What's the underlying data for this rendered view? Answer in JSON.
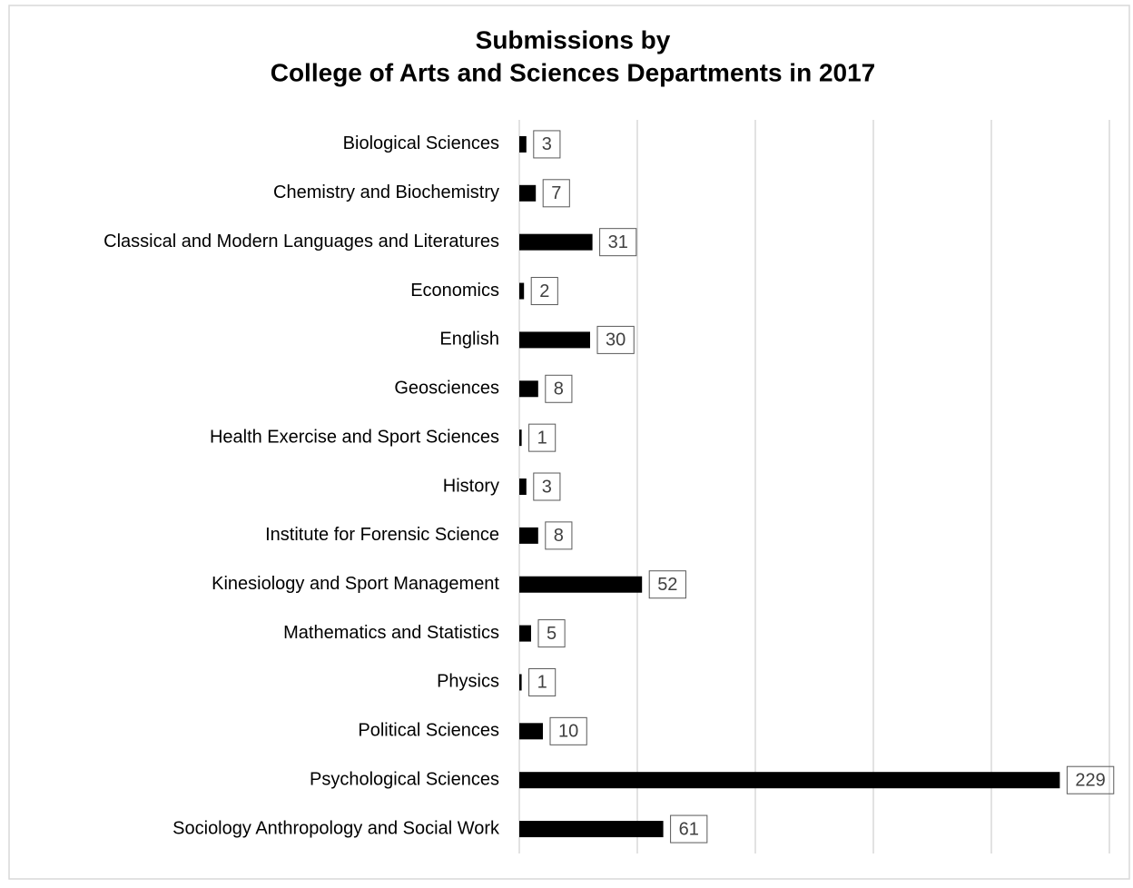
{
  "chart_data": {
    "type": "barh",
    "title": [
      "Submissions by",
      "College of Arts and Sciences Departments in 2017"
    ],
    "categories": [
      "Biological Sciences",
      "Chemistry and Biochemistry",
      "Classical and Modern Languages and Literatures",
      "Economics",
      "English",
      "Geosciences",
      "Health Exercise and Sport Sciences",
      "History",
      "Institute for Forensic Science",
      "Kinesiology and Sport Management",
      "Mathematics and Statistics",
      "Physics",
      "Political Sciences",
      "Psychological Sciences",
      "Sociology Anthropology and Social Work"
    ],
    "values": [
      3,
      7,
      31,
      2,
      30,
      8,
      1,
      3,
      8,
      52,
      5,
      1,
      10,
      229,
      61
    ],
    "color": "#000000",
    "xlim": [
      0,
      250
    ],
    "xticks": [
      0,
      50,
      100,
      150,
      200,
      250
    ],
    "grid": true
  }
}
